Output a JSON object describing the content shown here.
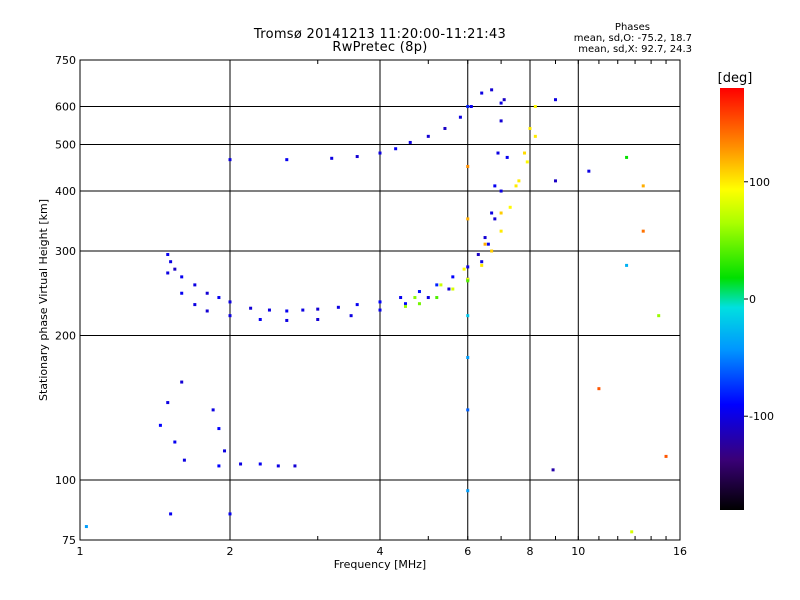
{
  "chart_data": {
    "type": "scatter",
    "title": "Tromsø 20141213 11:20:00-11:21:43",
    "subtitle": "RwPretec (8p)",
    "xlabel": "Frequency [MHz]",
    "ylabel": "Stationary phase Virtual Height [km]",
    "xscale": "log",
    "yscale": "log",
    "xlim": [
      1,
      16
    ],
    "ylim": [
      75,
      750
    ],
    "xticks": [
      1,
      2,
      4,
      6,
      8,
      10,
      16
    ],
    "xtick_labels": [
      "1",
      "2",
      "4",
      "6",
      "8",
      "10",
      "16"
    ],
    "yticks": [
      75,
      100,
      200,
      300,
      400,
      500,
      600,
      750
    ],
    "ytick_labels": [
      "75",
      "100",
      "200",
      "300",
      "400",
      "500",
      "600",
      "750"
    ],
    "grid": true,
    "colorbar": {
      "label": "[deg]",
      "range": [
        -180,
        180
      ],
      "ticks": [
        100,
        0,
        -100
      ],
      "tick_labels": [
        "100",
        "0",
        "-100"
      ]
    },
    "stats": {
      "heading": "Phases",
      "o_mode": "mean, sd,O: -75.2, 18.7",
      "x_mode": "mean, sd,X: 92.7, 24.3"
    },
    "series": [
      {
        "mode": "O",
        "points": [
          [
            1.5,
            295,
            -95
          ],
          [
            1.52,
            285,
            -100
          ],
          [
            1.55,
            275,
            -110
          ],
          [
            1.6,
            265,
            -95
          ],
          [
            1.7,
            255,
            -100
          ],
          [
            1.8,
            245,
            -105
          ],
          [
            1.9,
            240,
            -95
          ],
          [
            2.0,
            235,
            -100
          ],
          [
            2.2,
            228,
            -105
          ],
          [
            2.4,
            226,
            -100
          ],
          [
            2.6,
            225,
            -95
          ],
          [
            2.8,
            226,
            -100
          ],
          [
            3.0,
            227,
            -105
          ],
          [
            3.3,
            229,
            -100
          ],
          [
            3.6,
            232,
            -95
          ],
          [
            4.0,
            235,
            -90
          ],
          [
            4.4,
            240,
            -95
          ],
          [
            4.8,
            247,
            -85
          ],
          [
            5.2,
            255,
            -80
          ],
          [
            5.6,
            265,
            -90
          ],
          [
            6.0,
            278,
            -100
          ],
          [
            6.3,
            295,
            -110
          ],
          [
            6.5,
            320,
            -105
          ],
          [
            6.7,
            360,
            -100
          ],
          [
            6.8,
            410,
            -95
          ],
          [
            6.9,
            480,
            -100
          ],
          [
            7.0,
            560,
            -105
          ],
          [
            7.1,
            620,
            -110
          ],
          [
            1.5,
            270,
            -100
          ],
          [
            1.6,
            245,
            -95
          ],
          [
            1.7,
            232,
            -100
          ],
          [
            1.8,
            225,
            -105
          ],
          [
            2.0,
            220,
            -100
          ],
          [
            2.3,
            216,
            -95
          ],
          [
            2.6,
            215,
            -100
          ],
          [
            3.0,
            216,
            -105
          ],
          [
            3.5,
            220,
            -100
          ],
          [
            4.0,
            226,
            -95
          ],
          [
            4.5,
            233,
            -90
          ],
          [
            5.0,
            240,
            -100
          ],
          [
            5.5,
            250,
            -105
          ],
          [
            6.0,
            262,
            -110
          ],
          [
            6.4,
            285,
            -100
          ],
          [
            6.6,
            310,
            -95
          ],
          [
            6.8,
            350,
            -105
          ],
          [
            7.0,
            400,
            -100
          ],
          [
            7.2,
            470,
            -95
          ],
          [
            2.0,
            465,
            -100
          ],
          [
            2.6,
            465,
            -95
          ],
          [
            3.2,
            468,
            -100
          ],
          [
            3.6,
            472,
            -105
          ],
          [
            4.0,
            480,
            -100
          ],
          [
            4.3,
            490,
            -95
          ],
          [
            4.6,
            505,
            -100
          ],
          [
            5.0,
            520,
            -105
          ],
          [
            5.4,
            540,
            -110
          ],
          [
            5.8,
            570,
            -100
          ],
          [
            6.1,
            600,
            -95
          ],
          [
            6.4,
            640,
            -100
          ],
          [
            6.7,
            650,
            -105
          ],
          [
            7.0,
            610,
            -100
          ],
          [
            1.45,
            130,
            -90
          ],
          [
            1.5,
            145,
            -100
          ],
          [
            1.55,
            120,
            -95
          ],
          [
            1.6,
            160,
            -105
          ],
          [
            1.62,
            110,
            -100
          ],
          [
            1.52,
            85,
            -95
          ],
          [
            1.85,
            140,
            -100
          ],
          [
            1.9,
            128,
            -90
          ],
          [
            1.95,
            115,
            -100
          ],
          [
            1.9,
            107,
            -90
          ],
          [
            2.1,
            108,
            -100
          ],
          [
            2.3,
            108,
            -95
          ],
          [
            2.5,
            107,
            -100
          ],
          [
            2.7,
            107,
            -105
          ],
          [
            2.0,
            85,
            -95
          ],
          [
            1.03,
            80,
            -40
          ]
        ]
      },
      {
        "mode": "X",
        "points": [
          [
            4.5,
            230,
            60
          ],
          [
            4.8,
            233,
            50
          ],
          [
            5.2,
            240,
            40
          ],
          [
            5.6,
            250,
            80
          ],
          [
            6.0,
            262,
            90
          ],
          [
            6.4,
            280,
            100
          ],
          [
            6.7,
            300,
            110
          ],
          [
            7.0,
            330,
            100
          ],
          [
            7.3,
            370,
            95
          ],
          [
            7.6,
            420,
            100
          ],
          [
            7.8,
            480,
            105
          ],
          [
            8.0,
            540,
            100
          ],
          [
            8.2,
            600,
            95
          ],
          [
            4.7,
            240,
            55
          ],
          [
            5.3,
            255,
            75
          ],
          [
            5.9,
            275,
            95
          ],
          [
            6.5,
            310,
            120
          ],
          [
            7.0,
            360,
            110
          ],
          [
            7.5,
            410,
            100
          ],
          [
            7.9,
            460,
            95
          ],
          [
            8.2,
            520,
            100
          ]
        ]
      },
      {
        "mode": "noise",
        "points": [
          [
            6.0,
            600,
            -80
          ],
          [
            6.0,
            450,
            130
          ],
          [
            6.0,
            350,
            120
          ],
          [
            6.0,
            260,
            40
          ],
          [
            6.0,
            220,
            -20
          ],
          [
            6.0,
            180,
            -40
          ],
          [
            6.0,
            140,
            -60
          ],
          [
            6.0,
            95,
            -40
          ],
          [
            9.0,
            620,
            -100
          ],
          [
            9.0,
            420,
            -110
          ],
          [
            10.5,
            440,
            -100
          ],
          [
            8.9,
            105,
            -120
          ],
          [
            12.5,
            470,
            20
          ],
          [
            12.5,
            280,
            -30
          ],
          [
            13.5,
            330,
            140
          ],
          [
            13.5,
            410,
            120
          ],
          [
            14.5,
            220,
            60
          ],
          [
            15.0,
            112,
            150
          ],
          [
            11.0,
            155,
            150
          ],
          [
            12.8,
            78,
            80
          ]
        ]
      }
    ]
  }
}
